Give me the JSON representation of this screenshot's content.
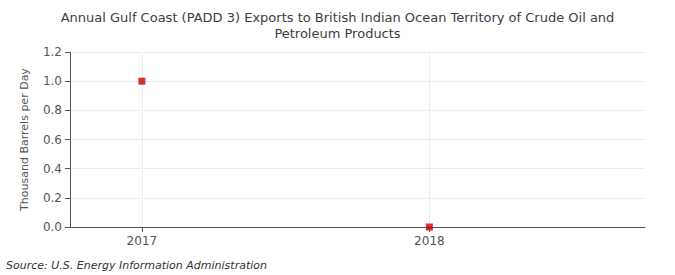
{
  "chart_data": {
    "type": "scatter",
    "title": "Annual Gulf Coast (PADD 3) Exports to British Indian Ocean Territory of Crude Oil and\nPetroleum Products",
    "ylabel": "Thousand Barrels per Day",
    "source": "Source: U.S. Energy Information Administration",
    "x": [
      2017,
      2018
    ],
    "values": [
      1.0,
      0.0
    ],
    "color": "#cc0000",
    "marker": "square",
    "xlim": [
      2016.75,
      2018.75
    ],
    "xticks": [
      2017,
      2018
    ],
    "ylim": [
      0.0,
      1.2
    ],
    "yticks": [
      {
        "value": 0.0,
        "label": "0.0"
      },
      0.2,
      0.4,
      0.6,
      0.8,
      {
        "value": 1.0,
        "label": "1.0"
      },
      1.2
    ],
    "grid": true
  }
}
